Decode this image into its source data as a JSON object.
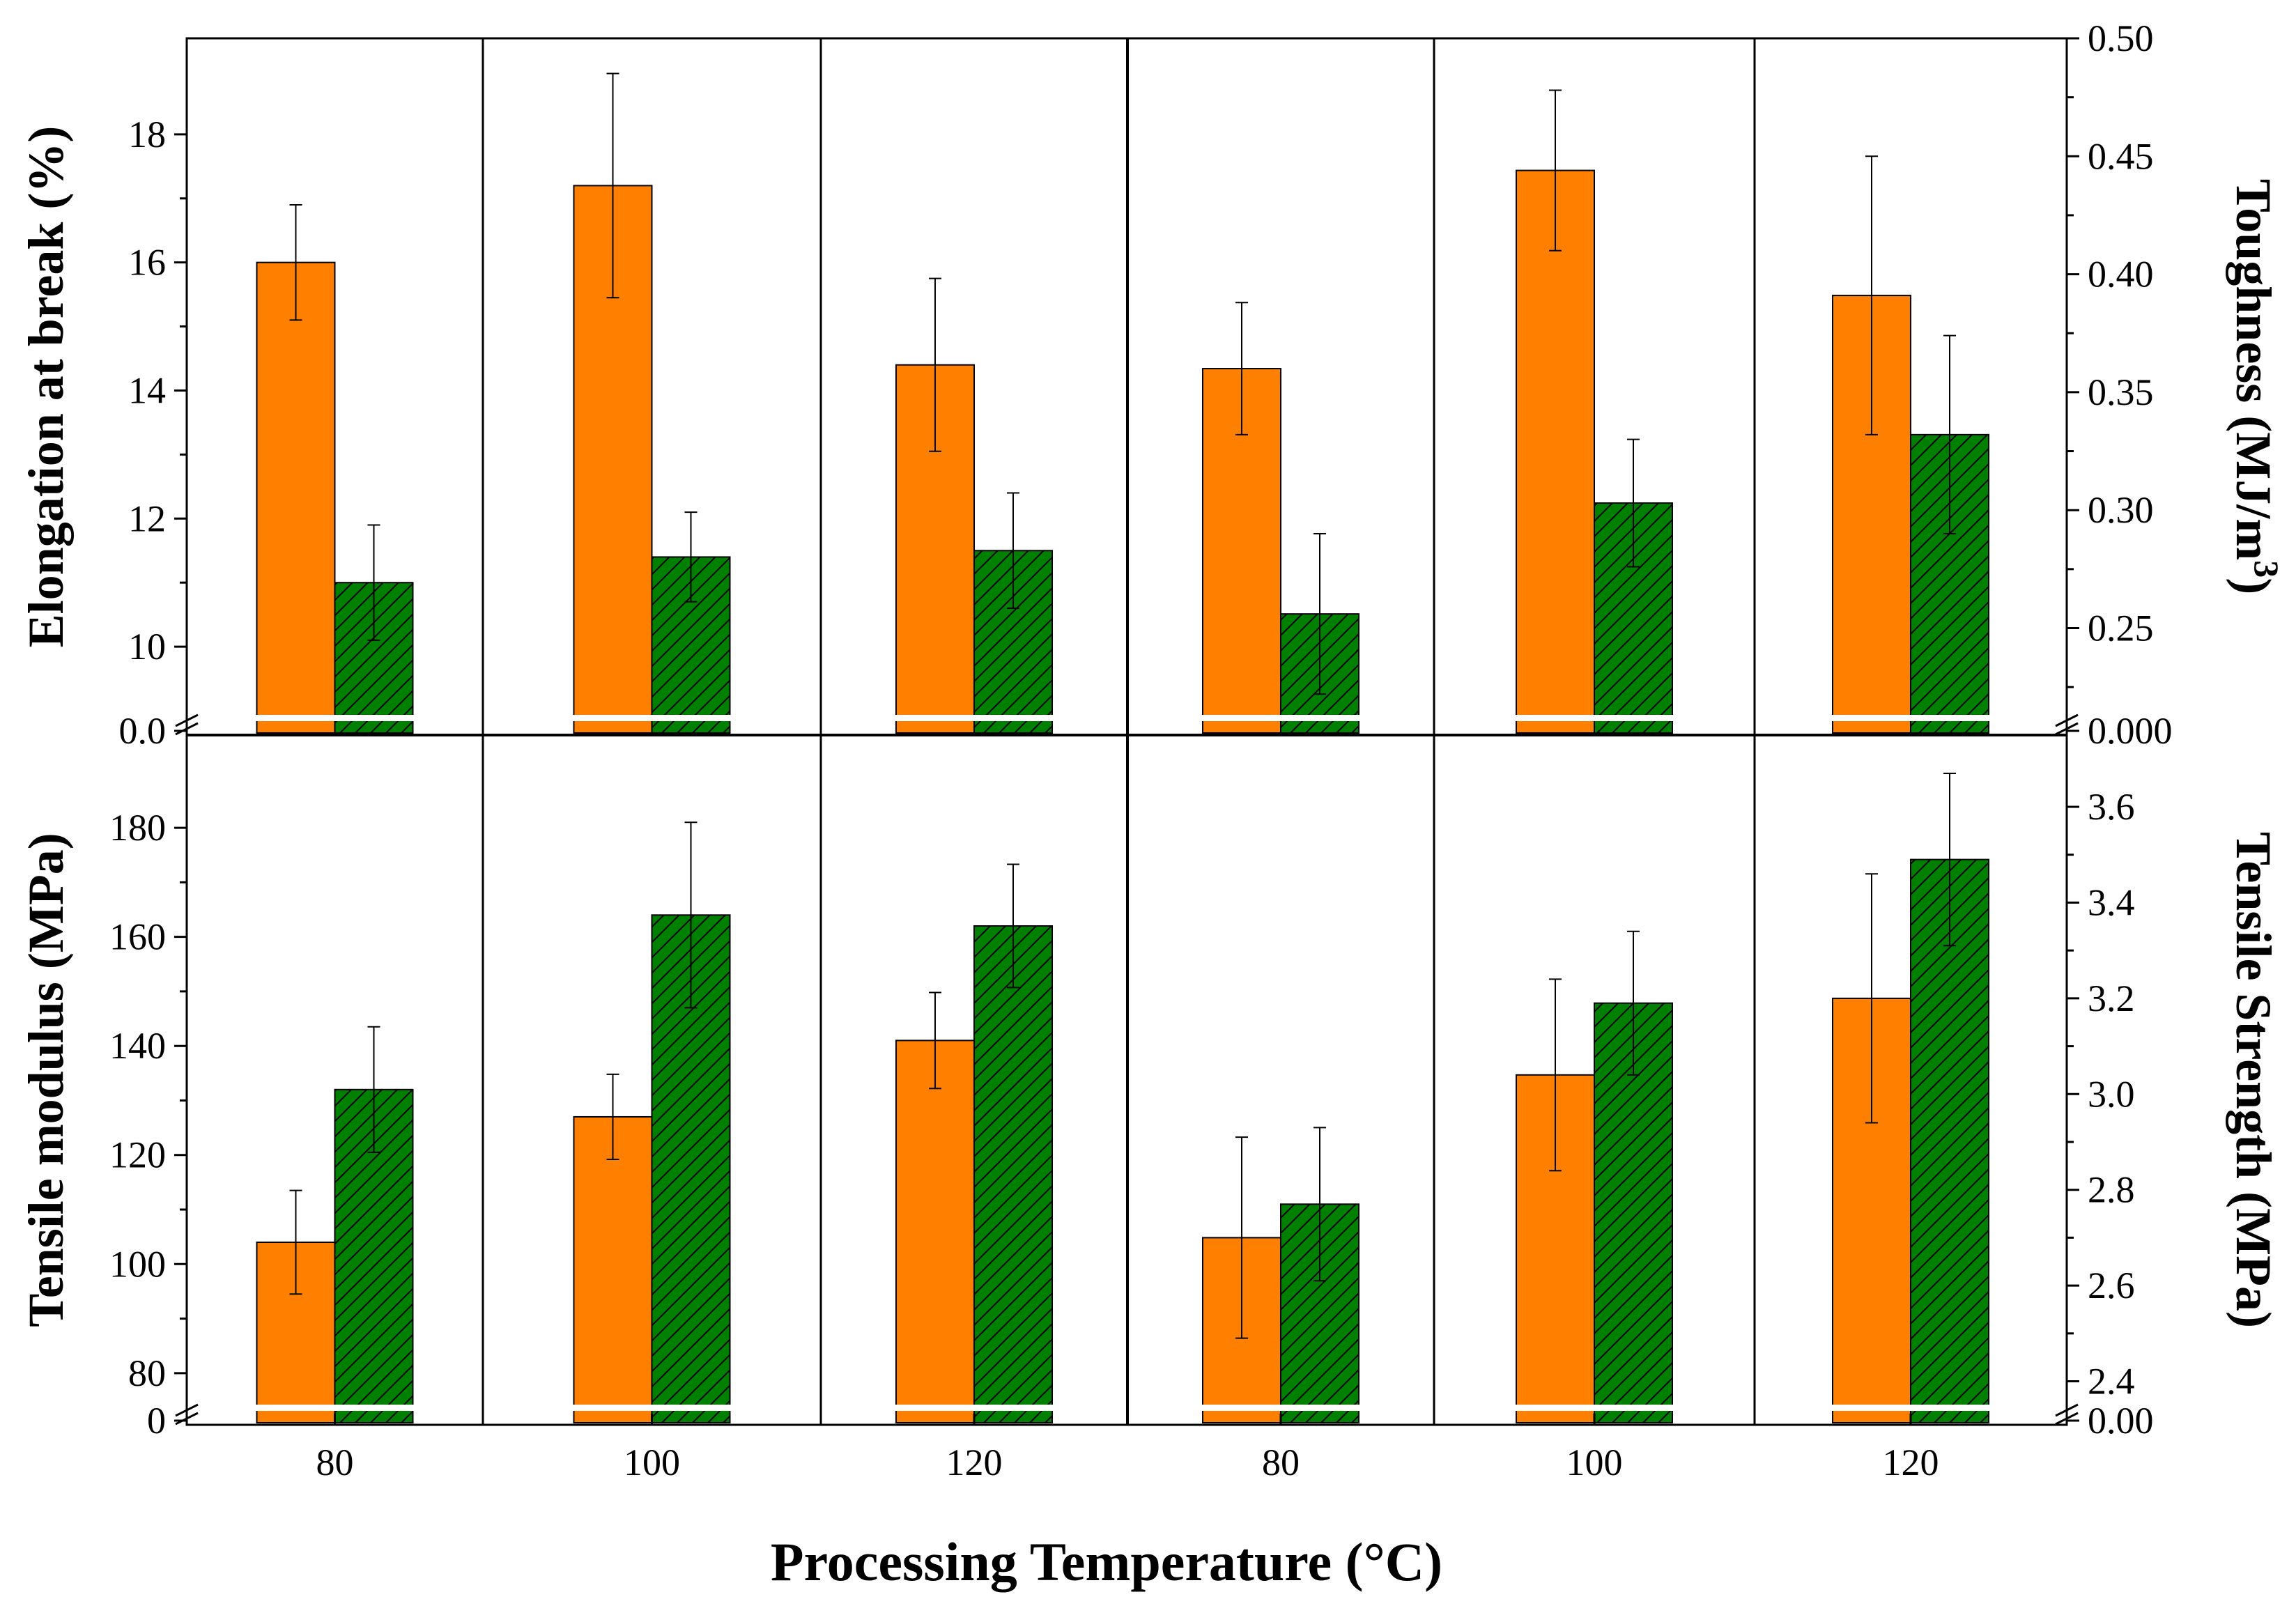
{
  "chart_data": {
    "type": "bar",
    "xlabel": "Processing Temperature (°C)",
    "categories": [
      "80",
      "100",
      "120",
      "80",
      "100",
      "120"
    ],
    "colors": {
      "series1": "#ff7f00",
      "series2": "#008000",
      "hatch": "#000000"
    },
    "panels": [
      {
        "name": "elongation",
        "ylabel": "Elongation at break (%)",
        "axis_side": "left",
        "groups": [
          0,
          1,
          2
        ],
        "ylim": [
          9,
          19.5
        ],
        "ticks": [
          10,
          12,
          14,
          16,
          18
        ],
        "tick_labels": [
          "10",
          "12",
          "14",
          "16",
          "18"
        ],
        "break_label": "0.0",
        "series": [
          {
            "name": "series1",
            "values": [
              16.0,
              17.2,
              14.4
            ],
            "errors": [
              0.9,
              1.75,
              1.35
            ]
          },
          {
            "name": "series2",
            "values": [
              11.0,
              11.4,
              11.5
            ],
            "errors": [
              0.9,
              0.7,
              0.9
            ]
          }
        ]
      },
      {
        "name": "toughness",
        "ylabel": "Toughness (MJ/m",
        "ylabel_sup": "3",
        "ylabel_close": ")",
        "axis_side": "right",
        "groups": [
          3,
          4,
          5
        ],
        "ylim": [
          0.215,
          0.5
        ],
        "ticks": [
          0.25,
          0.3,
          0.35,
          0.4,
          0.45,
          0.5
        ],
        "tick_labels": [
          "0.25",
          "0.30",
          "0.35",
          "0.40",
          "0.45",
          "0.50"
        ],
        "break_label": "0.000",
        "series": [
          {
            "name": "series1",
            "values": [
              0.36,
              0.444,
              0.391
            ],
            "errors": [
              0.028,
              0.034,
              0.059
            ]
          },
          {
            "name": "series2",
            "values": [
              0.256,
              0.303,
              0.332
            ],
            "errors": [
              0.034,
              0.027,
              0.042
            ]
          }
        ]
      },
      {
        "name": "modulus",
        "ylabel": "Tensile modulus (MPa)",
        "axis_side": "left",
        "groups": [
          0,
          1,
          2
        ],
        "ylim": [
          75,
          197
        ],
        "ticks": [
          80,
          100,
          120,
          140,
          160,
          180
        ],
        "tick_labels": [
          "80",
          "100",
          "120",
          "140",
          "160",
          "180"
        ],
        "break_label": "0",
        "series": [
          {
            "name": "series1",
            "values": [
              104,
              127,
              141
            ],
            "errors": [
              9.5,
              7.8,
              8.8
            ]
          },
          {
            "name": "series2",
            "values": [
              132,
              164,
              162
            ],
            "errors": [
              11.5,
              17,
              11.3
            ]
          }
        ]
      },
      {
        "name": "strength",
        "ylabel": "Tensile Strength (MPa)",
        "axis_side": "right",
        "groups": [
          3,
          4,
          5
        ],
        "ylim": [
          2.36,
          3.75
        ],
        "ticks": [
          2.4,
          2.6,
          2.8,
          3.0,
          3.2,
          3.4,
          3.6
        ],
        "tick_labels": [
          "2.4",
          "2.6",
          "2.8",
          "3.0",
          "3.2",
          "3.4",
          "3.6"
        ],
        "break_label": "0.00",
        "series": [
          {
            "name": "series1",
            "values": [
              2.7,
              3.04,
              3.2
            ],
            "errors": [
              0.21,
              0.2,
              0.26
            ]
          },
          {
            "name": "series2",
            "values": [
              2.77,
              3.19,
              3.49
            ],
            "errors": [
              0.16,
              0.15,
              0.18
            ]
          }
        ]
      }
    ]
  }
}
